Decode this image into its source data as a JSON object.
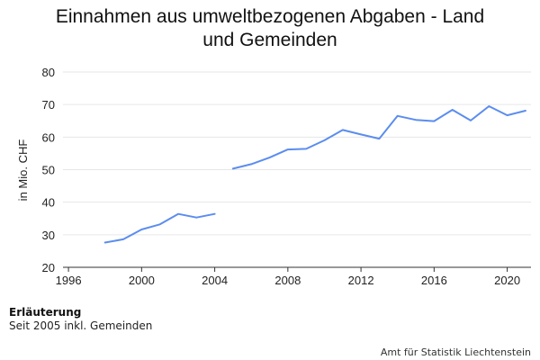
{
  "chart_data": {
    "type": "line",
    "title": "Einnahmen aus umweltbezogenen Abgaben - Land\nund Gemeinden",
    "ylabel": "in Mio. CHF",
    "xlabel": "",
    "ylim": [
      20,
      80
    ],
    "xlim": [
      1995.7,
      2021.3
    ],
    "y_ticks": [
      20,
      30,
      40,
      50,
      60,
      70,
      80
    ],
    "x_ticks": [
      1996,
      2000,
      2004,
      2008,
      2012,
      2016,
      2020
    ],
    "grid": "horizontal",
    "color": "#5b8def",
    "series": [
      {
        "segments": [
          {
            "x": [
              1998,
              1999,
              2000,
              2001,
              2002,
              2003,
              2004
            ],
            "y": [
              27.6,
              28.6,
              31.6,
              33.2,
              36.4,
              35.3,
              36.4
            ]
          },
          {
            "x": [
              2005,
              2006,
              2007,
              2008,
              2009,
              2010,
              2011,
              2012,
              2013,
              2014,
              2015,
              2016,
              2017,
              2018,
              2019,
              2020,
              2021
            ],
            "y": [
              50.3,
              51.7,
              53.7,
              56.2,
              56.4,
              59.0,
              62.2,
              60.8,
              59.5,
              66.5,
              65.3,
              64.9,
              68.4,
              65.1,
              69.5,
              66.7,
              68.1
            ]
          }
        ]
      }
    ]
  },
  "note": {
    "heading": "Erläuterung",
    "text": "Seit 2005 inkl. Gemeinden"
  },
  "source": "Amt für Statistik Liechtenstein"
}
